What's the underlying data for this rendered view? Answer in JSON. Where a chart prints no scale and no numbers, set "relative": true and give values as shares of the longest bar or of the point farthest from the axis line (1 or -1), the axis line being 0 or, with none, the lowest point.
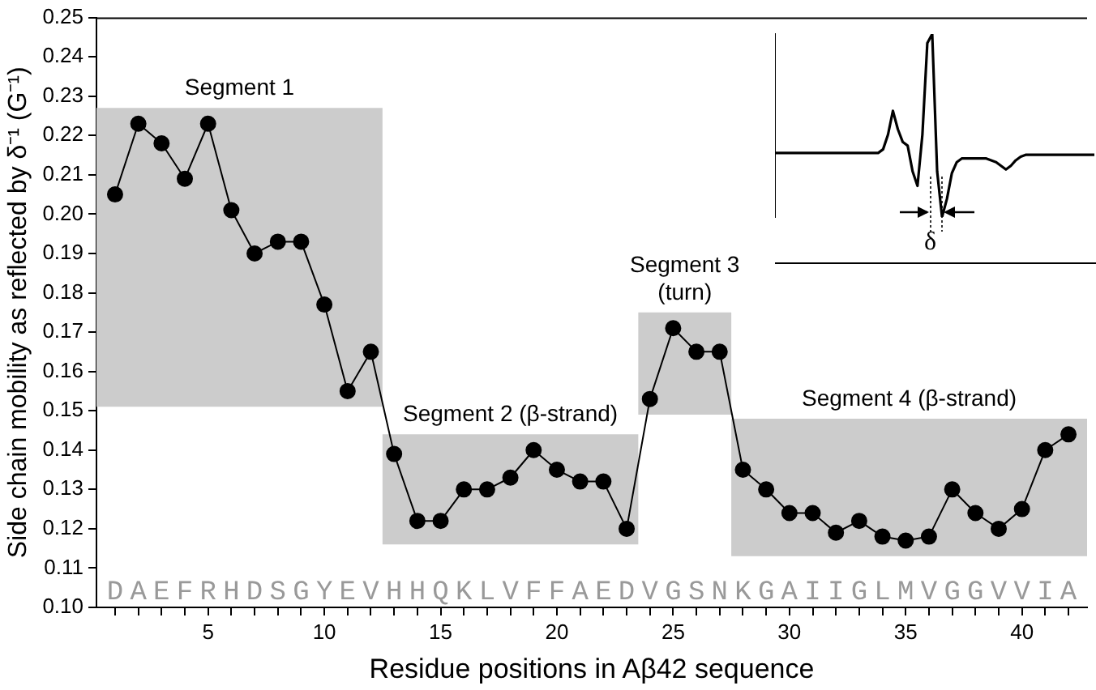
{
  "chart_data": [
    {
      "type": "line",
      "xlabel": "Residue positions in Aβ42 sequence",
      "ylabel": "Side chain mobility as reflected by δ⁻¹ (G⁻¹)",
      "x": [
        1,
        2,
        3,
        4,
        5,
        6,
        7,
        8,
        9,
        10,
        11,
        12,
        13,
        14,
        15,
        16,
        17,
        18,
        19,
        20,
        21,
        22,
        23,
        24,
        25,
        26,
        27,
        28,
        29,
        30,
        31,
        32,
        33,
        34,
        35,
        36,
        37,
        38,
        39,
        40,
        41,
        42
      ],
      "series": [
        {
          "color": "#000000",
          "values": [
            0.205,
            0.223,
            0.218,
            0.209,
            0.223,
            0.201,
            0.19,
            0.193,
            0.193,
            0.177,
            0.155,
            0.165,
            0.139,
            0.122,
            0.122,
            0.13,
            0.13,
            0.133,
            0.14,
            0.135,
            0.132,
            0.132,
            0.12,
            0.153,
            0.171,
            0.165,
            0.165,
            0.135,
            0.13,
            0.124,
            0.124,
            0.119,
            0.122,
            0.118,
            0.117,
            0.118,
            0.13,
            0.124,
            0.12,
            0.125,
            0.14,
            0.144
          ]
        }
      ],
      "marker": "circle",
      "line_style": "solid",
      "grid": false,
      "legend": false,
      "xlim": [
        0.2,
        42.8
      ],
      "xticks": [
        {
          "value": 1,
          "label": null
        },
        {
          "value": 2,
          "label": null
        },
        {
          "value": 3,
          "label": null
        },
        {
          "value": 4,
          "label": null
        },
        5,
        {
          "value": 6,
          "label": null
        },
        {
          "value": 7,
          "label": null
        },
        {
          "value": 8,
          "label": null
        },
        {
          "value": 9,
          "label": null
        },
        10,
        {
          "value": 11,
          "label": null
        },
        {
          "value": 12,
          "label": null
        },
        {
          "value": 13,
          "label": null
        },
        {
          "value": 14,
          "label": null
        },
        15,
        {
          "value": 16,
          "label": null
        },
        {
          "value": 17,
          "label": null
        },
        {
          "value": 18,
          "label": null
        },
        {
          "value": 19,
          "label": null
        },
        20,
        {
          "value": 21,
          "label": null
        },
        {
          "value": 22,
          "label": null
        },
        {
          "value": 23,
          "label": null
        },
        {
          "value": 24,
          "label": null
        },
        25,
        {
          "value": 26,
          "label": null
        },
        {
          "value": 27,
          "label": null
        },
        {
          "value": 28,
          "label": null
        },
        {
          "value": 29,
          "label": null
        },
        30,
        {
          "value": 31,
          "label": null
        },
        {
          "value": 32,
          "label": null
        },
        {
          "value": 33,
          "label": null
        },
        {
          "value": 34,
          "label": null
        },
        35,
        {
          "value": 36,
          "label": null
        },
        {
          "value": 37,
          "label": null
        },
        {
          "value": 38,
          "label": null
        },
        {
          "value": 39,
          "label": null
        },
        40,
        {
          "value": 41,
          "label": null
        },
        {
          "value": 42,
          "label": null
        }
      ],
      "ylim": [
        0.1,
        0.25
      ],
      "yticks": [
        {
          "value": 0.1,
          "label": "0.10"
        },
        0.11,
        0.12,
        0.13,
        0.14,
        0.15,
        0.16,
        0.17,
        0.18,
        0.19,
        {
          "value": 0.2,
          "label": "0.20"
        },
        0.21,
        0.22,
        0.23,
        0.24,
        0.25
      ],
      "bands": [
        {
          "axis": "x",
          "from": 0.2,
          "to": 12.5,
          "label": "Segment 1",
          "color": "#cccccc"
        },
        {
          "axis": "x",
          "from": 12.5,
          "to": 23.5,
          "label": "Segment 2 (β-strand)",
          "color": "#cccccc"
        },
        {
          "axis": "x",
          "from": 23.5,
          "to": 27.5,
          "label": "Segment 3\n(turn)",
          "color": "#cccccc"
        },
        {
          "axis": "x",
          "from": 27.5,
          "to": 42.8,
          "label": "Segment 4 (β-strand)",
          "color": "#cccccc"
        }
      ],
      "annotations": [
        "DAEFRHDSGYEVHHQKLVFFAEDVGSNKGAIIGLMVGGVVIA"
      ]
    },
    {
      "type": "line",
      "relative": true,
      "categories": [
        null,
        null,
        null,
        null,
        null,
        null,
        null,
        null,
        null,
        null,
        null,
        null,
        null,
        null,
        null,
        null,
        null,
        null,
        null,
        null,
        null,
        null,
        null,
        null,
        null,
        null,
        null,
        null,
        null,
        null,
        null,
        null,
        null,
        null,
        null,
        null,
        null,
        null,
        null,
        null,
        null,
        null,
        null,
        null,
        null,
        null,
        null,
        null,
        null,
        null,
        null,
        null,
        null,
        null,
        null,
        null,
        null,
        null,
        null,
        null,
        null,
        null,
        null,
        null,
        null,
        null
      ],
      "series": [
        {
          "color": "#000000",
          "values": [
            0.35,
            0.35,
            0.35,
            0.35,
            0.35,
            0.35,
            0.35,
            0.35,
            0.35,
            0.35,
            0.35,
            0.35,
            0.35,
            0.35,
            0.35,
            0.35,
            0.35,
            0.35,
            0.35,
            0.35,
            0.35,
            0.35,
            0.37,
            0.45,
            0.58,
            0.48,
            0.41,
            0.39,
            0.25,
            0.17,
            0.45,
            0.95,
            1.0,
            0.25,
            0.0,
            0.1,
            0.24,
            0.3,
            0.32,
            0.32,
            0.32,
            0.32,
            0.32,
            0.32,
            0.31,
            0.3,
            0.28,
            0.26,
            0.28,
            0.31,
            0.33,
            0.34,
            0.34,
            0.34,
            0.34,
            0.34,
            0.34,
            0.34,
            0.34,
            0.34,
            0.34,
            0.34,
            0.34,
            0.34,
            0.34,
            0.34
          ]
        }
      ],
      "annotations": [
        "δ"
      ]
    }
  ]
}
